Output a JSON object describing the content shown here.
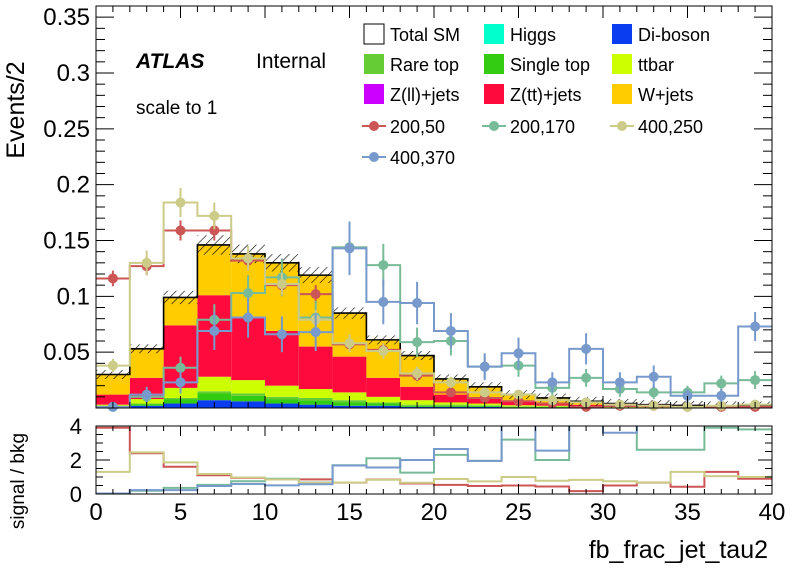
{
  "chart_data": {
    "type": "bar",
    "x_edges": [
      0,
      2,
      4,
      6,
      8,
      10,
      12,
      14,
      16,
      18,
      20,
      22,
      24,
      26,
      28,
      30,
      32,
      34,
      36,
      38,
      40
    ],
    "xlabel": "fb_frac_jet_tau2",
    "xlim": [
      0,
      40
    ],
    "xticks": [
      0,
      5,
      10,
      15,
      20,
      25,
      30,
      35,
      40
    ],
    "top": {
      "ylabel": "Events/2",
      "ylim": [
        0,
        0.36
      ],
      "yticks": [
        "0.05",
        "0.1",
        "0.15",
        "0.2",
        "0.25",
        "0.3",
        "0.35"
      ],
      "ytick_values": [
        0.05,
        0.1,
        0.15,
        0.2,
        0.25,
        0.3,
        0.35
      ],
      "stack": [
        {
          "name": "Di-boson",
          "color": "#0a3cf0",
          "values": [
            0.001,
            0.002,
            0.004,
            0.007,
            0.006,
            0.004,
            0.003,
            0.002,
            0.002,
            0.001,
            0.001,
            0.001,
            0.0005,
            0.0005,
            0.0003,
            0.0002,
            0.0002,
            0.0001,
            0.0001,
            0.0001
          ]
        },
        {
          "name": "Single top",
          "color": "#33cc11",
          "values": [
            0.0005,
            0.0015,
            0.004,
            0.006,
            0.005,
            0.004,
            0.004,
            0.003,
            0.002,
            0.001,
            0.001,
            0.001,
            0.0005,
            0.0005,
            0.0003,
            0.0002,
            0.0002,
            0.0001,
            0.0001,
            0.0001
          ]
        },
        {
          "name": "Rare top",
          "color": "#66cc33",
          "values": [
            0.0005,
            0.0005,
            0.001,
            0.002,
            0.002,
            0.002,
            0.002,
            0.002,
            0.001,
            0.001,
            0.001,
            0.0005,
            0.0005,
            0.0003,
            0.0002,
            0.0002,
            0.0001,
            0.0001,
            0.0001,
            0.0001
          ]
        },
        {
          "name": "ttbar",
          "color": "#ccff00",
          "values": [
            0.001,
            0.004,
            0.009,
            0.013,
            0.012,
            0.01,
            0.008,
            0.007,
            0.005,
            0.004,
            0.002,
            0.0015,
            0.001,
            0.0008,
            0.0006,
            0.0004,
            0.0003,
            0.0002,
            0.0002,
            0.0002
          ]
        },
        {
          "name": "Z(tt)+jets",
          "color": "#ff0a3c",
          "values": [
            0.009,
            0.019,
            0.056,
            0.073,
            0.057,
            0.049,
            0.038,
            0.032,
            0.017,
            0.012,
            0.007,
            0.005,
            0.003,
            0.002,
            0.0015,
            0.001,
            0.0007,
            0.0005,
            0.0004,
            0.0003
          ]
        },
        {
          "name": "W+jets",
          "color": "#ffcc00",
          "values": [
            0.018,
            0.026,
            0.025,
            0.045,
            0.056,
            0.061,
            0.064,
            0.039,
            0.034,
            0.028,
            0.014,
            0.01,
            0.007,
            0.005,
            0.003,
            0.0025,
            0.0017,
            0.0014,
            0.0012,
            0.0012
          ]
        },
        {
          "name": "Z(ll)+jets",
          "color": "#cc00ff",
          "values": [
            0,
            0,
            0,
            0,
            0,
            0,
            0,
            0,
            0,
            0,
            0,
            0,
            0,
            0,
            0,
            0,
            0,
            0,
            0,
            0
          ]
        },
        {
          "name": "Higgs",
          "color": "#00ffcc",
          "values": [
            0,
            0,
            0,
            0,
            0,
            0,
            0,
            0,
            0,
            0,
            0,
            0,
            0,
            0,
            0,
            0,
            0,
            0,
            0,
            0
          ]
        }
      ],
      "total": [
        0.03,
        0.053,
        0.099,
        0.146,
        0.138,
        0.13,
        0.119,
        0.085,
        0.061,
        0.047,
        0.026,
        0.019,
        0.012,
        0.009,
        0.006,
        0.004,
        0.003,
        0.0023,
        0.0019,
        0.0018
      ],
      "signals": [
        {
          "name": "200,50",
          "color": "#cc5555",
          "values": [
            0.116,
            0.127,
            0.159,
            0.159,
            0.132,
            0.11,
            0.102,
            0.057,
            0.052,
            0.029,
            0.014,
            0.009,
            0.006,
            0.004,
            0.001,
            0.002,
            0.002,
            0.001,
            0.001,
            0.001
          ],
          "errors": [
            0.007,
            0.008,
            0.009,
            0.009,
            0.008,
            0.008,
            0.008,
            0.006,
            0.006,
            0.005,
            0.003,
            0.003,
            0.002,
            0.002,
            0.001,
            0.001,
            0.001,
            0.001,
            0.001,
            0.001
          ]
        },
        {
          "name": "200,170",
          "color": "#77bb99",
          "values": [
            0.001,
            0.01,
            0.036,
            0.079,
            0.103,
            0.117,
            0.081,
            0.144,
            0.128,
            0.059,
            0.06,
            0.037,
            0.038,
            0.018,
            0.027,
            0.017,
            0.014,
            0.014,
            0.022,
            0.025
          ],
          "errors": [
            0.001,
            0.005,
            0.01,
            0.014,
            0.016,
            0.017,
            0.015,
            0.02,
            0.019,
            0.013,
            0.013,
            0.01,
            0.01,
            0.007,
            0.008,
            0.007,
            0.006,
            0.006,
            0.007,
            0.008
          ]
        },
        {
          "name": "400,250",
          "color": "#cccc88",
          "values": [
            0.038,
            0.13,
            0.184,
            0.172,
            0.134,
            0.111,
            0.079,
            0.058,
            0.051,
            0.031,
            0.023,
            0.014,
            0.012,
            0.007,
            0.005,
            0.003,
            0.002,
            0.001,
            0.002,
            0.003
          ],
          "errors": [
            0.006,
            0.011,
            0.013,
            0.012,
            0.011,
            0.01,
            0.009,
            0.008,
            0.007,
            0.006,
            0.005,
            0.004,
            0.004,
            0.003,
            0.002,
            0.002,
            0.001,
            0.001,
            0.001,
            0.002
          ]
        },
        {
          "name": "400,370",
          "color": "#7799cc",
          "values": [
            0.001,
            0.012,
            0.023,
            0.069,
            0.081,
            0.066,
            0.068,
            0.143,
            0.095,
            0.094,
            0.069,
            0.037,
            0.049,
            0.023,
            0.053,
            0.023,
            0.028,
            0.011,
            0.011,
            0.073
          ],
          "errors": [
            0.001,
            0.007,
            0.01,
            0.017,
            0.018,
            0.016,
            0.017,
            0.024,
            0.02,
            0.019,
            0.016,
            0.012,
            0.014,
            0.009,
            0.014,
            0.009,
            0.01,
            0.006,
            0.006,
            0.013
          ]
        }
      ]
    },
    "ratio": {
      "ylabel": "signal / bkg",
      "ylim": [
        0,
        4
      ],
      "yticks": [
        "0",
        "2",
        "4"
      ],
      "ytick_values": [
        0,
        2,
        4
      ],
      "series": [
        {
          "name": "200,50",
          "color": "#cc5555",
          "values": [
            3.9,
            2.4,
            1.6,
            1.1,
            0.95,
            0.85,
            0.86,
            0.67,
            0.85,
            0.62,
            0.54,
            0.47,
            0.5,
            0.44,
            0.17,
            0.5,
            0.67,
            0.43,
            1.3,
            0.9
          ]
        },
        {
          "name": "200,170",
          "color": "#77bb99",
          "values": [
            0.03,
            0.19,
            0.36,
            0.54,
            0.75,
            0.9,
            0.68,
            1.69,
            2.1,
            1.26,
            2.3,
            1.95,
            3.2,
            2.0,
            4.5,
            4.25,
            2.6,
            2.6,
            3.9,
            3.8
          ]
        },
        {
          "name": "400,250",
          "color": "#cccc88",
          "values": [
            1.3,
            2.45,
            1.86,
            1.18,
            0.97,
            0.85,
            0.66,
            0.68,
            0.84,
            0.66,
            0.88,
            0.74,
            1.0,
            0.78,
            0.83,
            0.75,
            0.67,
            1.3,
            1.05,
            1.0
          ]
        },
        {
          "name": "400,370",
          "color": "#7799cc",
          "values": [
            0.03,
            0.23,
            0.23,
            0.47,
            0.59,
            0.51,
            0.57,
            1.68,
            1.56,
            2.0,
            2.65,
            1.95,
            4.1,
            2.55,
            4.3,
            3.6,
            4.3,
            4.3,
            4.3,
            4.3
          ]
        }
      ]
    },
    "legend": {
      "columns": 3,
      "entries": [
        {
          "label": "Total SM",
          "style": "box",
          "color": "#ffffff"
        },
        {
          "label": "Higgs",
          "style": "fill",
          "color": "#00ffcc"
        },
        {
          "label": "Di-boson",
          "style": "fill",
          "color": "#0a3cf0"
        },
        {
          "label": "Rare top",
          "style": "fill",
          "color": "#66cc33"
        },
        {
          "label": "Single top",
          "style": "fill",
          "color": "#33cc11"
        },
        {
          "label": "ttbar",
          "style": "fill",
          "color": "#ccff00"
        },
        {
          "label": "Z(ll)+jets",
          "style": "fill",
          "color": "#cc00ff"
        },
        {
          "label": "Z(tt)+jets",
          "style": "fill",
          "color": "#ff0a3c"
        },
        {
          "label": "W+jets",
          "style": "fill",
          "color": "#ffcc00"
        },
        {
          "label": "200,50",
          "style": "marker",
          "color": "#cc5555"
        },
        {
          "label": "200,170",
          "style": "marker",
          "color": "#77bb99"
        },
        {
          "label": "400,250",
          "style": "marker",
          "color": "#cccc88"
        },
        {
          "label": "400,370",
          "style": "marker",
          "color": "#7799cc"
        }
      ]
    },
    "annotations": {
      "experiment": "ATLAS",
      "status": "Internal",
      "note": "scale to 1"
    }
  }
}
